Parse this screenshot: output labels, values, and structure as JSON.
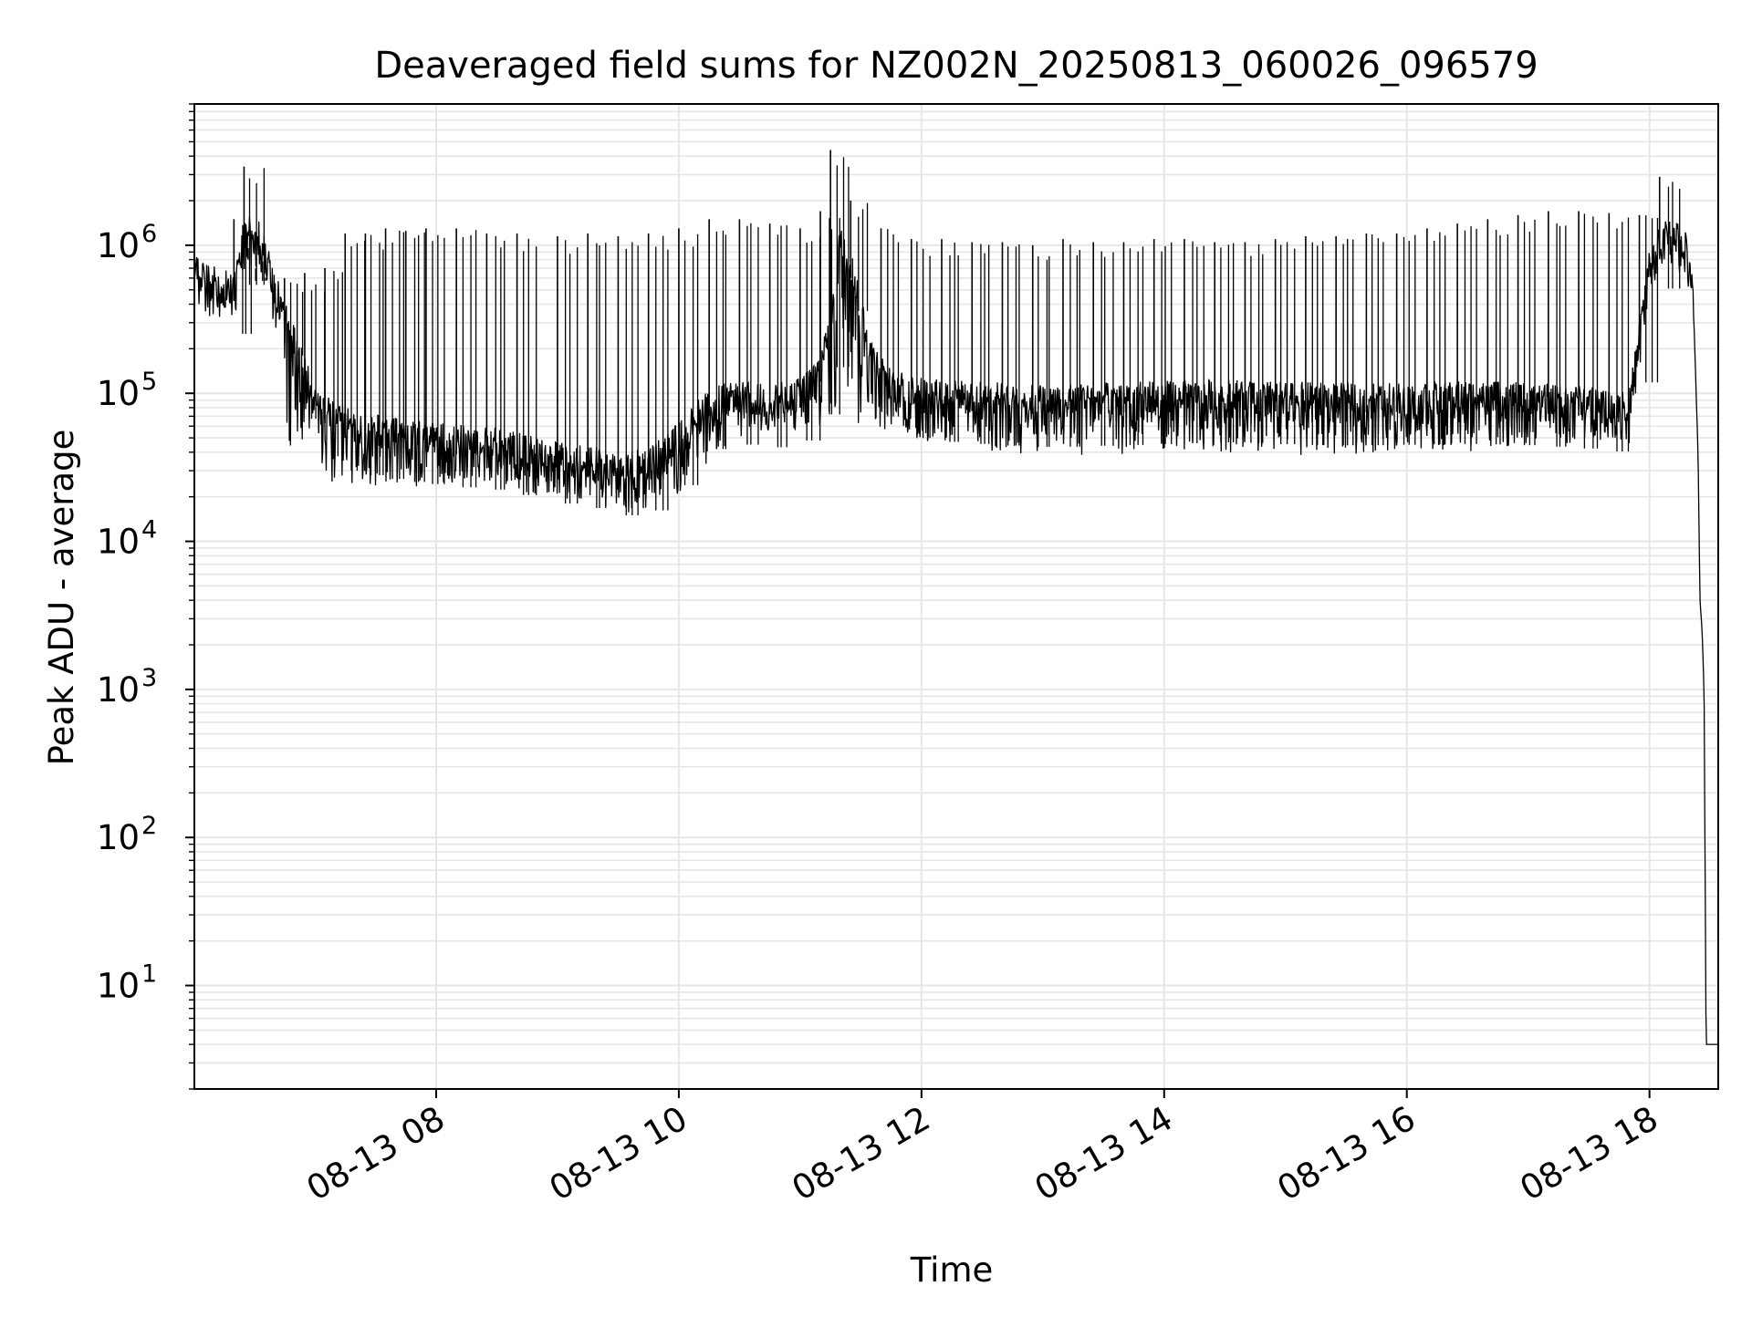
{
  "chart_data": {
    "type": "line",
    "title": "Deaveraged field sums for NZ002N_20250813_060026_096579",
    "xlabel": "Time",
    "ylabel": "Peak ADU - average",
    "yscale": "log",
    "ylim": [
      2,
      9000000
    ],
    "xlim": [
      "2025-08-13 06:00:26",
      "2025-08-13 18:34:00"
    ],
    "grid": true,
    "legend": "none",
    "line_color": "#000000",
    "x_ticks": [
      {
        "t": "2025-08-13 08:00",
        "label": "08-13 08"
      },
      {
        "t": "2025-08-13 10:00",
        "label": "08-13 10"
      },
      {
        "t": "2025-08-13 12:00",
        "label": "08-13 12"
      },
      {
        "t": "2025-08-13 14:00",
        "label": "08-13 14"
      },
      {
        "t": "2025-08-13 16:00",
        "label": "08-13 16"
      },
      {
        "t": "2025-08-13 18:00",
        "label": "08-13 18"
      }
    ],
    "y_ticks": [
      {
        "value": 10,
        "base": "10",
        "exp": "1"
      },
      {
        "value": 100,
        "base": "10",
        "exp": "2"
      },
      {
        "value": 1000,
        "base": "10",
        "exp": "3"
      },
      {
        "value": 10000,
        "base": "10",
        "exp": "4"
      },
      {
        "value": 100000,
        "base": "10",
        "exp": "5"
      },
      {
        "value": 1000000,
        "base": "10",
        "exp": "6"
      }
    ],
    "series": [
      {
        "x": [
          "2025-08-13 06:00",
          "2025-08-13 06:10",
          "2025-08-13 06:20",
          "2025-08-13 06:25",
          "2025-08-13 06:30",
          "2025-08-13 06:35",
          "2025-08-13 06:40",
          "2025-08-13 06:45",
          "2025-08-13 06:50",
          "2025-08-13 07:00",
          "2025-08-13 07:15",
          "2025-08-13 07:30",
          "2025-08-13 07:45",
          "2025-08-13 08:00",
          "2025-08-13 08:15",
          "2025-08-13 08:30",
          "2025-08-13 08:45",
          "2025-08-13 09:00",
          "2025-08-13 09:15",
          "2025-08-13 09:30",
          "2025-08-13 09:45",
          "2025-08-13 10:00",
          "2025-08-13 10:15",
          "2025-08-13 10:30",
          "2025-08-13 10:45",
          "2025-08-13 11:00",
          "2025-08-13 11:10",
          "2025-08-13 11:15",
          "2025-08-13 11:20",
          "2025-08-13 11:25",
          "2025-08-13 11:30",
          "2025-08-13 11:35",
          "2025-08-13 11:45",
          "2025-08-13 12:00",
          "2025-08-13 12:30",
          "2025-08-13 13:00",
          "2025-08-13 13:30",
          "2025-08-13 14:00",
          "2025-08-13 14:30",
          "2025-08-13 15:00",
          "2025-08-13 15:30",
          "2025-08-13 16:00",
          "2025-08-13 16:30",
          "2025-08-13 17:00",
          "2025-08-13 17:30",
          "2025-08-13 17:50",
          "2025-08-13 18:00",
          "2025-08-13 18:05",
          "2025-08-13 18:10",
          "2025-08-13 18:15",
          "2025-08-13 18:20",
          "2025-08-13 18:22",
          "2025-08-13 18:24",
          "2025-08-13 18:25",
          "2025-08-13 18:26",
          "2025-08-13 18:27",
          "2025-08-13 18:28",
          "2025-08-13 18:30",
          "2025-08-13 18:34"
        ],
        "y": [
          550000,
          450000,
          420000,
          900000,
          1050000,
          800000,
          400000,
          300000,
          180000,
          70000,
          50000,
          45000,
          42000,
          40000,
          38000,
          37000,
          33000,
          30000,
          28000,
          25000,
          27000,
          40000,
          70000,
          75000,
          72000,
          80000,
          120000,
          250000,
          900000,
          600000,
          300000,
          150000,
          90000,
          80000,
          75000,
          72000,
          74000,
          76000,
          78000,
          75000,
          74000,
          75000,
          76000,
          74000,
          70000,
          65000,
          600000,
          850000,
          1000000,
          900000,
          700000,
          300000,
          40000,
          4000,
          2500,
          1000,
          4,
          4,
          4
        ]
      }
    ],
    "spikes": {
      "x": [
        "2025-08-13 06:20",
        "2025-08-13 06:25",
        "2025-08-13 06:27",
        "2025-08-13 06:45",
        "2025-08-13 06:55",
        "2025-08-13 07:05",
        "2025-08-13 07:15",
        "2025-08-13 07:25",
        "2025-08-13 07:35",
        "2025-08-13 07:45",
        "2025-08-13 07:55",
        "2025-08-13 08:10",
        "2025-08-13 08:25",
        "2025-08-13 08:40",
        "2025-08-13 09:00",
        "2025-08-13 09:15",
        "2025-08-13 09:30",
        "2025-08-13 09:45",
        "2025-08-13 10:00",
        "2025-08-13 10:15",
        "2025-08-13 10:30",
        "2025-08-13 10:45",
        "2025-08-13 11:00",
        "2025-08-13 11:10",
        "2025-08-13 11:15",
        "2025-08-13 11:25",
        "2025-08-13 11:40",
        "2025-08-13 11:55",
        "2025-08-13 12:10",
        "2025-08-13 12:25",
        "2025-08-13 12:40",
        "2025-08-13 12:55",
        "2025-08-13 13:10",
        "2025-08-13 13:25",
        "2025-08-13 13:40",
        "2025-08-13 13:55",
        "2025-08-13 14:10",
        "2025-08-13 14:25",
        "2025-08-13 14:40",
        "2025-08-13 14:55",
        "2025-08-13 15:10",
        "2025-08-13 15:25",
        "2025-08-13 15:40",
        "2025-08-13 15:55",
        "2025-08-13 16:10",
        "2025-08-13 16:25",
        "2025-08-13 16:40",
        "2025-08-13 16:55",
        "2025-08-13 17:10",
        "2025-08-13 17:25",
        "2025-08-13 17:40",
        "2025-08-13 17:55",
        "2025-08-13 18:05"
      ],
      "y": [
        1500000,
        3400000,
        800000,
        600000,
        650000,
        700000,
        1200000,
        1200000,
        1300000,
        1250000,
        1300000,
        1300000,
        1200000,
        1200000,
        1150000,
        1200000,
        1150000,
        1200000,
        1300000,
        1500000,
        1500000,
        1400000,
        1300000,
        1700000,
        4400000,
        2000000,
        1300000,
        1100000,
        1100000,
        1050000,
        1050000,
        1000000,
        1100000,
        1050000,
        1050000,
        1100000,
        1100000,
        1050000,
        1050000,
        1100000,
        1150000,
        1150000,
        1200000,
        1200000,
        1300000,
        1400000,
        1500000,
        1600000,
        1700000,
        1700000,
        1650000,
        1600000,
        2900000
      ]
    },
    "noise_floor": {
      "x": [
        "2025-08-13 06:45",
        "2025-08-13 07:00",
        "2025-08-13 07:15",
        "2025-08-13 07:30",
        "2025-08-13 07:45",
        "2025-08-13 08:00",
        "2025-08-13 08:15",
        "2025-08-13 08:30",
        "2025-08-13 08:45",
        "2025-08-13 09:00",
        "2025-08-13 09:15",
        "2025-08-13 09:30",
        "2025-08-13 09:45",
        "2025-08-13 10:00",
        "2025-08-13 10:15",
        "2025-08-13 10:30",
        "2025-08-13 10:45",
        "2025-08-13 11:00",
        "2025-08-13 11:45",
        "2025-08-13 12:00",
        "2025-08-13 12:30",
        "2025-08-13 13:00",
        "2025-08-13 13:30",
        "2025-08-13 14:00",
        "2025-08-13 14:30",
        "2025-08-13 15:00",
        "2025-08-13 15:30",
        "2025-08-13 16:00",
        "2025-08-13 16:30",
        "2025-08-13 17:00",
        "2025-08-13 17:30"
      ],
      "y": [
        35000,
        25000,
        24000,
        23000,
        22000,
        25000,
        25000,
        24000,
        20000,
        20000,
        18000,
        15000,
        16000,
        20000,
        35000,
        50000,
        55000,
        55000,
        50000,
        45000,
        40000,
        38000,
        37000,
        40000,
        40000,
        38000,
        38000,
        42000,
        40000,
        45000,
        45000
      ]
    }
  }
}
